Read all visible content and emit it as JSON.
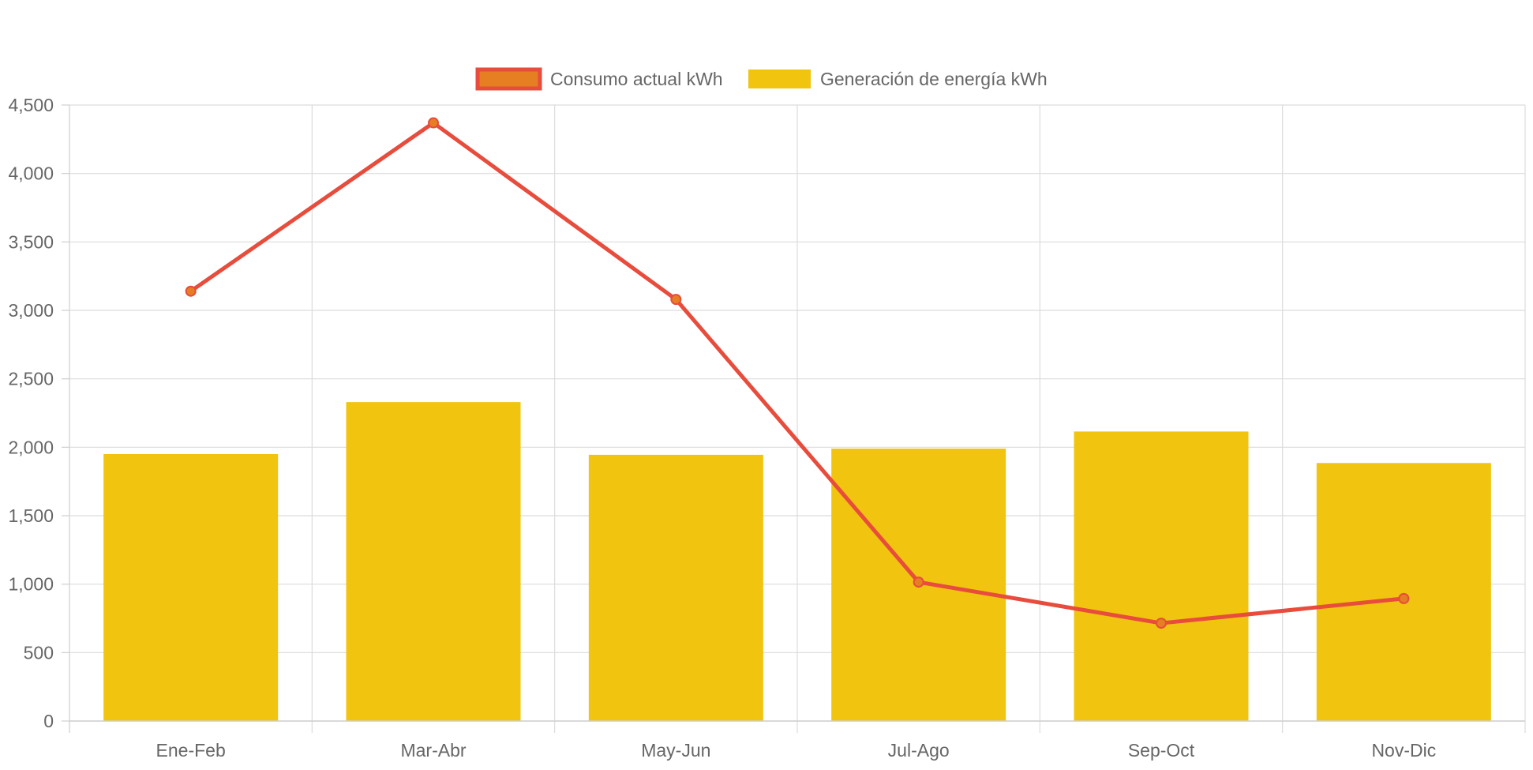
{
  "chart_data": {
    "type": "bar",
    "categories": [
      "Ene-Feb",
      "Mar-Abr",
      "May-Jun",
      "Jul-Ago",
      "Sep-Oct",
      "Nov-Dic"
    ],
    "ylim": [
      0,
      4500
    ],
    "yticks": [
      0,
      500,
      1000,
      1500,
      2000,
      2500,
      3000,
      3500,
      4000,
      4500
    ],
    "ytick_labels": [
      "0",
      "500",
      "1,000",
      "1,500",
      "2,000",
      "2,500",
      "3,000",
      "3,500",
      "4,000",
      "4,500"
    ],
    "grid": true,
    "legend_position": "top-center",
    "series": [
      {
        "name": "Consumo actual kWh",
        "type": "line",
        "color": "#e74c3c",
        "point_color": "#e67e22",
        "values": [
          3140,
          4370,
          3080,
          1015,
          715,
          895
        ]
      },
      {
        "name": "Generación de energía kWh",
        "type": "bar",
        "color": "#f1c40f",
        "values": [
          1950,
          2330,
          1945,
          1990,
          2115,
          1885
        ]
      }
    ]
  }
}
